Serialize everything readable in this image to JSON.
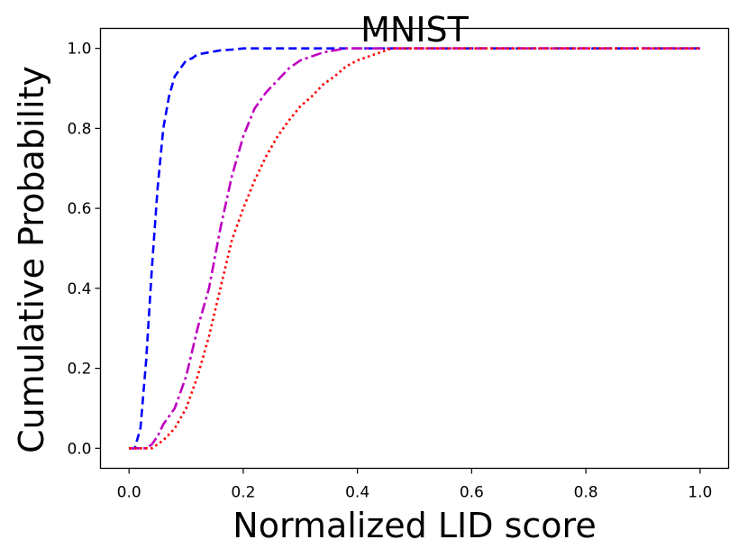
{
  "chart_data": {
    "type": "line",
    "title": "MNIST",
    "xlabel": "Normalized LID score",
    "ylabel": "Cumulative Probability",
    "xlim": [
      -0.05,
      1.05
    ],
    "ylim": [
      -0.05,
      1.05
    ],
    "xticks": [
      0.0,
      0.2,
      0.4,
      0.6,
      0.8,
      1.0
    ],
    "yticks": [
      0.0,
      0.2,
      0.4,
      0.6,
      0.8,
      1.0
    ],
    "xtick_labels": [
      "0.0",
      "0.2",
      "0.4",
      "0.6",
      "0.8",
      "1.0"
    ],
    "ytick_labels": [
      "0.0",
      "0.2",
      "0.4",
      "0.6",
      "0.8",
      "1.0"
    ],
    "grid": false,
    "series": [
      {
        "name": "blue-dashed",
        "color": "#0000ff",
        "style": "dashed",
        "x": [
          0.0,
          0.01,
          0.02,
          0.03,
          0.04,
          0.05,
          0.06,
          0.07,
          0.08,
          0.09,
          0.1,
          0.11,
          0.12,
          0.14,
          0.16,
          0.18,
          0.2,
          0.22,
          1.0
        ],
        "y": [
          0.0,
          0.0,
          0.05,
          0.22,
          0.45,
          0.65,
          0.8,
          0.88,
          0.93,
          0.95,
          0.97,
          0.975,
          0.985,
          0.99,
          0.995,
          0.997,
          1.0,
          1.0,
          1.0
        ]
      },
      {
        "name": "magenta-dashdot",
        "color": "#bf00bf",
        "style": "dashdot",
        "x": [
          0.0,
          0.02,
          0.03,
          0.04,
          0.05,
          0.06,
          0.08,
          0.1,
          0.12,
          0.14,
          0.16,
          0.18,
          0.2,
          0.22,
          0.24,
          0.26,
          0.28,
          0.3,
          0.32,
          0.34,
          0.36,
          0.38,
          0.4,
          1.0
        ],
        "y": [
          0.0,
          0.0,
          0.0,
          0.01,
          0.03,
          0.06,
          0.1,
          0.18,
          0.3,
          0.4,
          0.55,
          0.68,
          0.78,
          0.85,
          0.89,
          0.92,
          0.95,
          0.97,
          0.98,
          0.99,
          0.995,
          1.0,
          1.0,
          1.0
        ]
      },
      {
        "name": "red-dotted",
        "color": "#ff0000",
        "style": "dotted",
        "x": [
          0.0,
          0.02,
          0.04,
          0.06,
          0.08,
          0.1,
          0.12,
          0.14,
          0.16,
          0.18,
          0.2,
          0.22,
          0.24,
          0.26,
          0.28,
          0.3,
          0.32,
          0.34,
          0.36,
          0.38,
          0.4,
          0.42,
          0.44,
          0.46,
          1.0
        ],
        "y": [
          0.0,
          0.0,
          0.0,
          0.02,
          0.05,
          0.1,
          0.18,
          0.28,
          0.4,
          0.52,
          0.6,
          0.67,
          0.73,
          0.78,
          0.82,
          0.855,
          0.88,
          0.91,
          0.93,
          0.955,
          0.97,
          0.98,
          0.99,
          1.0,
          1.0
        ]
      }
    ]
  }
}
